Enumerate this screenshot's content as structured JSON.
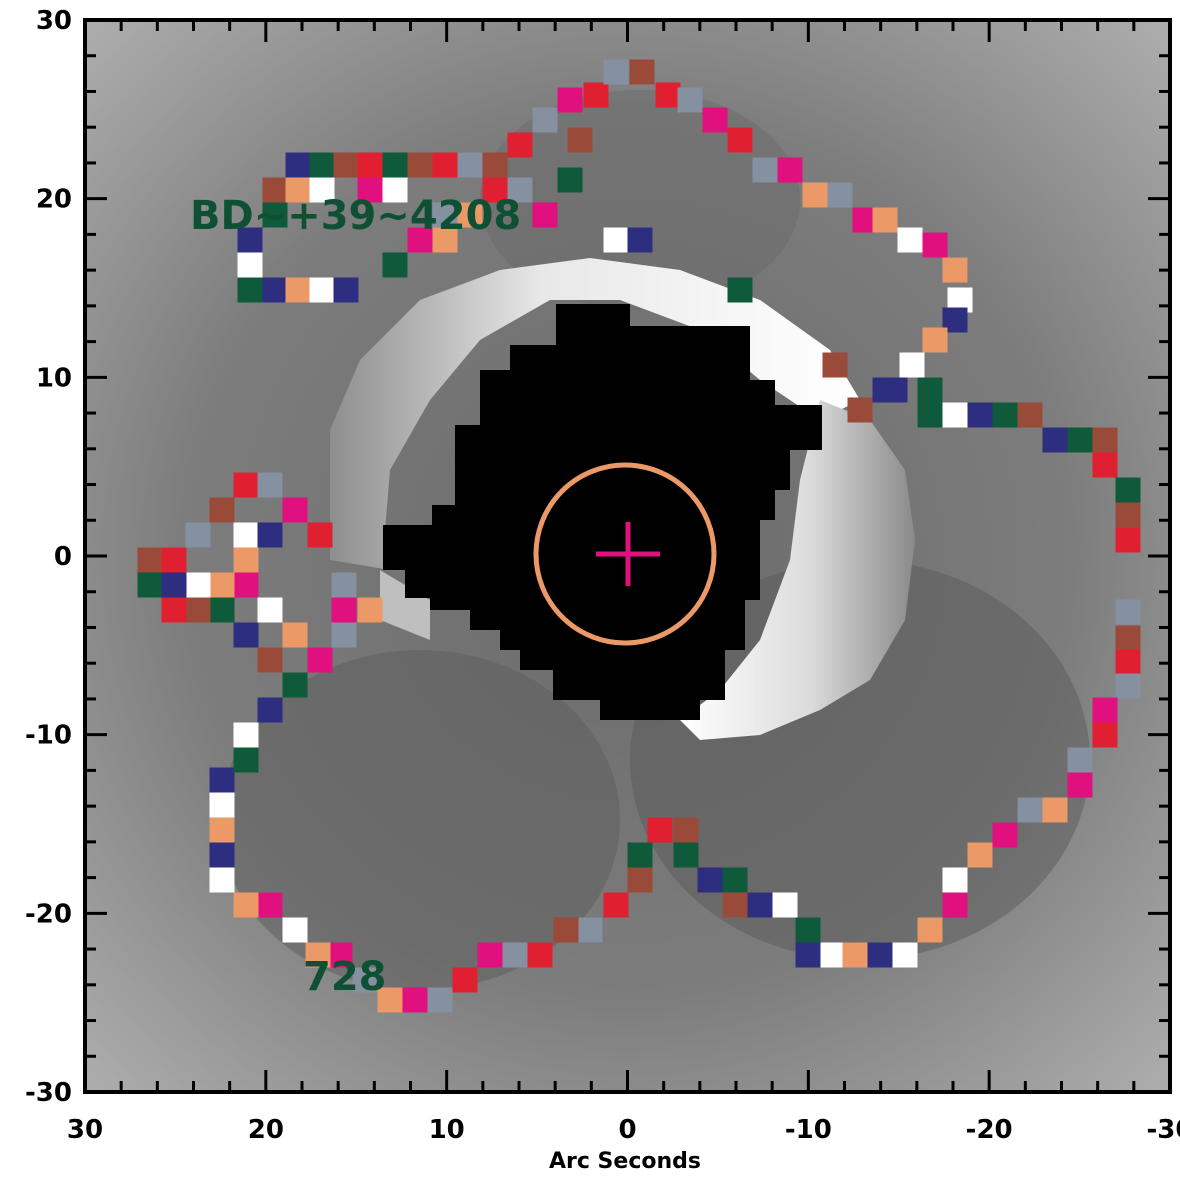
{
  "chart_data": {
    "type": "heatmap",
    "xlabel": "Arc Seconds",
    "ylabel": "",
    "xlim": [
      30,
      -30
    ],
    "ylim": [
      -30,
      30
    ],
    "x_ticks": [
      30,
      20,
      10,
      0,
      -10,
      -20,
      -30
    ],
    "y_ticks": [
      30,
      20,
      10,
      0,
      -10,
      -20,
      -30
    ],
    "x_tick_labels": [
      "30",
      "20",
      "10",
      "0",
      "-10",
      "-20",
      "-30"
    ],
    "y_tick_labels": [
      "30",
      "20",
      "10",
      "0",
      "-10",
      "-20",
      "-30"
    ],
    "annotations": [
      {
        "text": "BD~+39~4208",
        "x": 24.5,
        "y": 18.6,
        "color": "#0f5035"
      },
      {
        "text": "728",
        "x": 17.5,
        "y": -25.3,
        "color": "#0f5035"
      }
    ],
    "marker": {
      "shape": "plus-in-circle",
      "x": 0,
      "y": 0,
      "circle_radius_arcsec": 5,
      "circle_color": "#eb9966",
      "plus_color": "#e0107e"
    },
    "palette": [
      "#0f5a3a",
      "#eb9966",
      "#e02030",
      "#2e2e80",
      "#e0107e",
      "#9a4a38",
      "#ffffff",
      "#8590a0"
    ],
    "background": "grayscale image",
    "contour_description": "star-shaped multi-colored pixel contour"
  }
}
